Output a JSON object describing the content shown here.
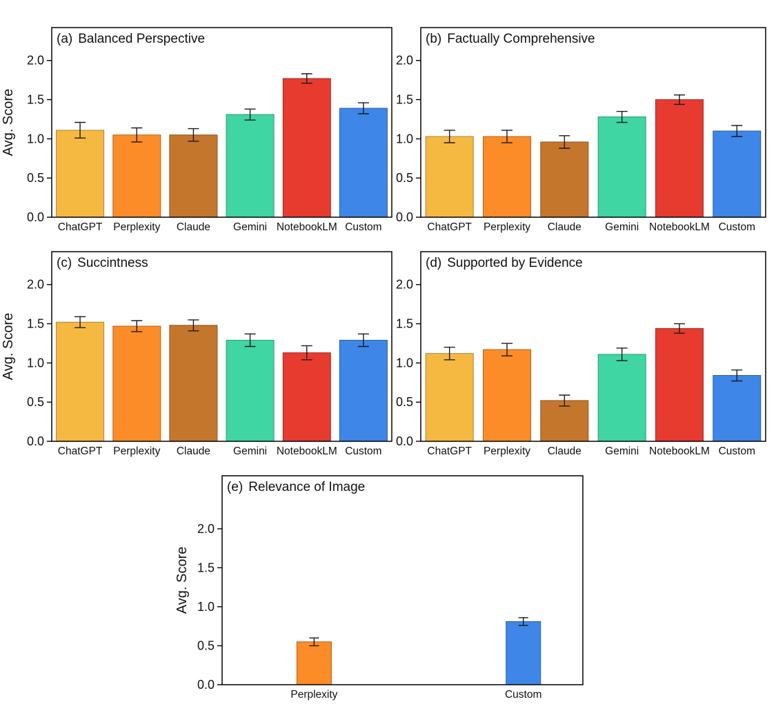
{
  "figure": {
    "background": "#ffffff"
  },
  "palette": {
    "ChatGPT": "#F5B942",
    "Perplexity": "#FB8C28",
    "Claude": "#C5762D",
    "Gemini": "#3FD6A4",
    "NotebookLM": "#E73B30",
    "Custom": "#3E86E8",
    "error_bar": "#1a1a1a",
    "axis": "#000000"
  },
  "chart_data": [
    {
      "type": "bar",
      "panel_label": "(a)",
      "title": "Balanced Perspective",
      "ylabel": "Avg. Score",
      "show_ylabel": true,
      "categories": [
        "ChatGPT",
        "Perplexity",
        "Claude",
        "Gemini",
        "NotebookLM",
        "Custom"
      ],
      "values": [
        1.11,
        1.05,
        1.05,
        1.31,
        1.77,
        1.39
      ],
      "errors": [
        0.1,
        0.09,
        0.08,
        0.07,
        0.06,
        0.07
      ],
      "yticks": [
        0.0,
        0.5,
        1.0,
        1.5,
        2.0
      ],
      "ylim": [
        0,
        2.42
      ],
      "grid": false,
      "legend": "none"
    },
    {
      "type": "bar",
      "panel_label": "(b)",
      "title": "Factually Comprehensive",
      "ylabel": "",
      "show_ylabel": false,
      "categories": [
        "ChatGPT",
        "Perplexity",
        "Claude",
        "Gemini",
        "NotebookLM",
        "Custom"
      ],
      "values": [
        1.03,
        1.03,
        0.96,
        1.28,
        1.5,
        1.1
      ],
      "errors": [
        0.08,
        0.08,
        0.08,
        0.07,
        0.06,
        0.07
      ],
      "yticks": [
        0.0,
        0.5,
        1.0,
        1.5,
        2.0
      ],
      "ylim": [
        0,
        2.42
      ],
      "grid": false,
      "legend": "none"
    },
    {
      "type": "bar",
      "panel_label": "(c)",
      "title": "Succintness",
      "ylabel": "Avg. Score",
      "show_ylabel": true,
      "categories": [
        "ChatGPT",
        "Perplexity",
        "Claude",
        "Gemini",
        "NotebookLM",
        "Custom"
      ],
      "values": [
        1.52,
        1.47,
        1.48,
        1.29,
        1.13,
        1.29
      ],
      "errors": [
        0.07,
        0.07,
        0.07,
        0.08,
        0.09,
        0.08
      ],
      "yticks": [
        0.0,
        0.5,
        1.0,
        1.5,
        2.0
      ],
      "ylim": [
        0,
        2.42
      ],
      "grid": false,
      "legend": "none"
    },
    {
      "type": "bar",
      "panel_label": "(d)",
      "title": "Supported by Evidence",
      "ylabel": "",
      "show_ylabel": false,
      "categories": [
        "ChatGPT",
        "Perplexity",
        "Claude",
        "Gemini",
        "NotebookLM",
        "Custom"
      ],
      "values": [
        1.12,
        1.17,
        0.52,
        1.11,
        1.44,
        0.84
      ],
      "errors": [
        0.08,
        0.08,
        0.07,
        0.08,
        0.06,
        0.07
      ],
      "yticks": [
        0.0,
        0.5,
        1.0,
        1.5,
        2.0
      ],
      "ylim": [
        0,
        2.42
      ],
      "grid": false,
      "legend": "none"
    },
    {
      "type": "bar",
      "panel_label": "(e)",
      "title": "Relevance of Image",
      "ylabel": "Avg. Score",
      "show_ylabel": true,
      "categories": [
        "Perplexity",
        "Custom"
      ],
      "values": [
        0.55,
        0.81
      ],
      "errors": [
        0.05,
        0.05
      ],
      "yticks": [
        0.0,
        0.5,
        1.0,
        1.5,
        2.0
      ],
      "ylim": [
        0,
        2.68
      ],
      "grid": false,
      "legend": "none"
    }
  ]
}
